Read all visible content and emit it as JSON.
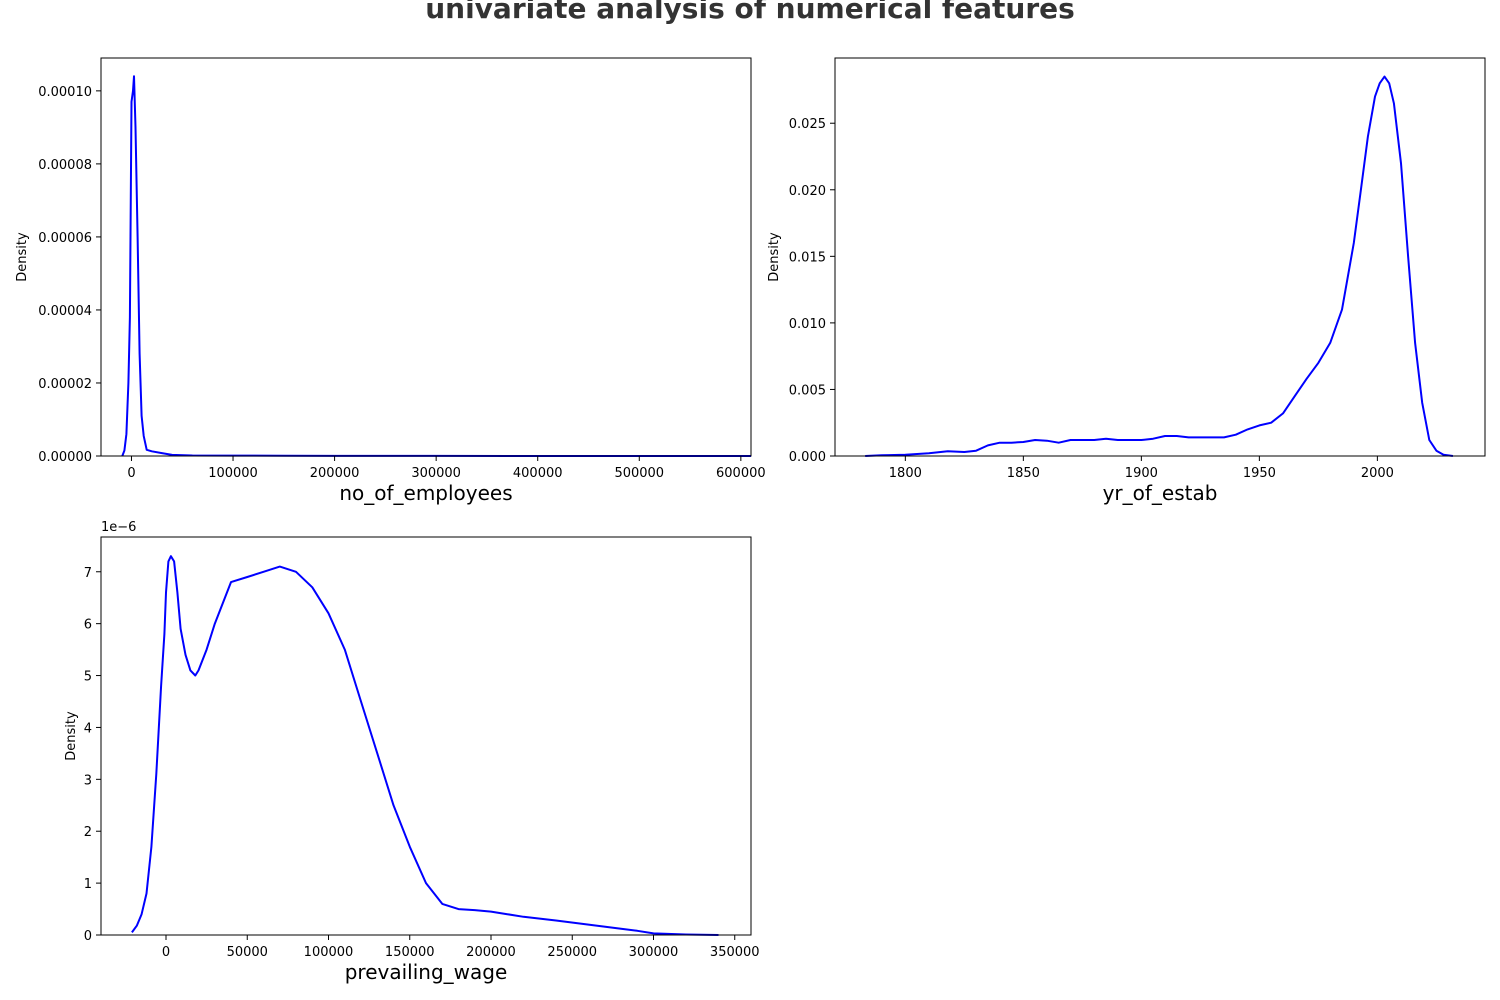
{
  "title": "univariate analysis of numerical features",
  "chart_data": [
    {
      "type": "line",
      "xlabel": "no_of_employees",
      "ylabel": "Density",
      "xlim": [
        -30000,
        610000
      ],
      "ylim": [
        0,
        0.000109
      ],
      "xticks": [
        0,
        100000,
        200000,
        300000,
        400000,
        500000,
        600000
      ],
      "xtick_labels": [
        "0",
        "100000",
        "200000",
        "300000",
        "400000",
        "500000",
        "600000"
      ],
      "yticks": [
        0,
        2e-05,
        4e-05,
        6e-05,
        8e-05,
        0.0001
      ],
      "ytick_labels": [
        "0.00000",
        "0.00002",
        "0.00004",
        "0.00006",
        "0.00008",
        "0.00010"
      ],
      "y_offset_label": "",
      "color": "#0000ff",
      "series": [
        {
          "x": [
            -9000,
            -7000,
            -5000,
            -3000,
            -1500,
            0,
            1500,
            2500,
            4000,
            6000,
            8000,
            10000,
            12000,
            15000,
            20000,
            30000,
            40000,
            60000,
            100000,
            150000,
            200000,
            300000,
            400000,
            500000,
            610000
          ],
          "y": [
            0,
            1.5e-06,
            6e-06,
            2e-05,
            3.8e-05,
            9.7e-05,
            0.0001,
            0.000104,
            9e-05,
            6e-05,
            2.8e-05,
            1.1e-05,
            5.5e-06,
            1.7e-06,
            1.3e-06,
            8e-07,
            3e-07,
            1.5e-07,
            1e-07,
            6e-08,
            4e-08,
            2e-08,
            1e-08,
            1e-08,
            0
          ]
        }
      ]
    },
    {
      "type": "line",
      "xlabel": "yr_of_estab",
      "ylabel": "Density",
      "xlim": [
        1770.2,
        2045.6
      ],
      "ylim": [
        0,
        0.0299
      ],
      "xticks": [
        1800,
        1850,
        1900,
        1950,
        2000
      ],
      "xtick_labels": [
        "1800",
        "1850",
        "1900",
        "1950",
        "2000"
      ],
      "yticks": [
        0,
        0.005,
        0.01,
        0.015,
        0.02,
        0.025
      ],
      "ytick_labels": [
        "0.000",
        "0.005",
        "0.010",
        "0.015",
        "0.020",
        "0.025"
      ],
      "y_offset_label": "",
      "color": "#0000ff",
      "series": [
        {
          "x": [
            1783,
            1790,
            1800,
            1810,
            1818,
            1825,
            1830,
            1835,
            1840,
            1845,
            1850,
            1855,
            1860,
            1865,
            1870,
            1875,
            1880,
            1885,
            1890,
            1895,
            1900,
            1905,
            1910,
            1915,
            1920,
            1925,
            1930,
            1935,
            1940,
            1945,
            1950,
            1955,
            1960,
            1965,
            1970,
            1975,
            1980,
            1985,
            1990,
            1993,
            1996,
            1999,
            2001,
            2003,
            2005,
            2007,
            2010,
            2013,
            2016,
            2019,
            2022,
            2025,
            2028,
            2032
          ],
          "y": [
            0,
            5e-05,
            0.0001,
            0.0002,
            0.00035,
            0.0003,
            0.0004,
            0.0008,
            0.001,
            0.001,
            0.00105,
            0.0012,
            0.00115,
            0.001,
            0.0012,
            0.0012,
            0.0012,
            0.0013,
            0.0012,
            0.0012,
            0.0012,
            0.0013,
            0.0015,
            0.0015,
            0.0014,
            0.0014,
            0.0014,
            0.0014,
            0.0016,
            0.002,
            0.0023,
            0.0025,
            0.0032,
            0.0045,
            0.0058,
            0.007,
            0.0085,
            0.011,
            0.016,
            0.02,
            0.024,
            0.027,
            0.028,
            0.0285,
            0.028,
            0.0265,
            0.022,
            0.015,
            0.0085,
            0.004,
            0.0012,
            0.0004,
            0.0001,
            0
          ]
        }
      ]
    },
    {
      "type": "line",
      "xlabel": "prevailing_wage",
      "ylabel": "Density",
      "xlim": [
        -40000,
        360000
      ],
      "ylim": [
        0,
        7.67e-06
      ],
      "xticks": [
        0,
        50000,
        100000,
        150000,
        200000,
        250000,
        300000,
        350000
      ],
      "xtick_labels": [
        "0",
        "50000",
        "100000",
        "150000",
        "200000",
        "250000",
        "300000",
        "350000"
      ],
      "yticks": [
        0,
        1e-06,
        2e-06,
        3e-06,
        4e-06,
        5e-06,
        6e-06,
        7e-06
      ],
      "ytick_labels": [
        "0",
        "1",
        "2",
        "3",
        "4",
        "5",
        "6",
        "7"
      ],
      "y_offset_label": "1e−6",
      "color": "#0000ff",
      "series": [
        {
          "x": [
            -21000,
            -18000,
            -15000,
            -12000,
            -9000,
            -6000,
            -3000,
            -1000,
            0,
            1500,
            3000,
            5000,
            7000,
            9000,
            12000,
            15000,
            18000,
            20000,
            25000,
            30000,
            40000,
            50000,
            60000,
            70000,
            80000,
            90000,
            100000,
            110000,
            120000,
            130000,
            140000,
            150000,
            160000,
            170000,
            180000,
            190000,
            200000,
            210000,
            220000,
            240000,
            260000,
            280000,
            290000,
            300000,
            320000,
            340000
          ],
          "y": [
            5e-08,
            1.8e-07,
            4e-07,
            8e-07,
            1.7e-06,
            3.1e-06,
            4.8e-06,
            5.8e-06,
            6.6e-06,
            7.2e-06,
            7.3e-06,
            7.2e-06,
            6.6e-06,
            5.9e-06,
            5.4e-06,
            5.1e-06,
            5e-06,
            5.1e-06,
            5.5e-06,
            6e-06,
            6.8e-06,
            6.9e-06,
            7e-06,
            7.1e-06,
            7e-06,
            6.7e-06,
            6.2e-06,
            5.5e-06,
            4.5e-06,
            3.5e-06,
            2.5e-06,
            1.7e-06,
            1e-06,
            6e-07,
            5e-07,
            4.8e-07,
            4.5e-07,
            4e-07,
            3.5e-07,
            2.8e-07,
            2e-07,
            1.2e-07,
            8e-08,
            3e-08,
            1e-08,
            0
          ]
        }
      ]
    }
  ]
}
